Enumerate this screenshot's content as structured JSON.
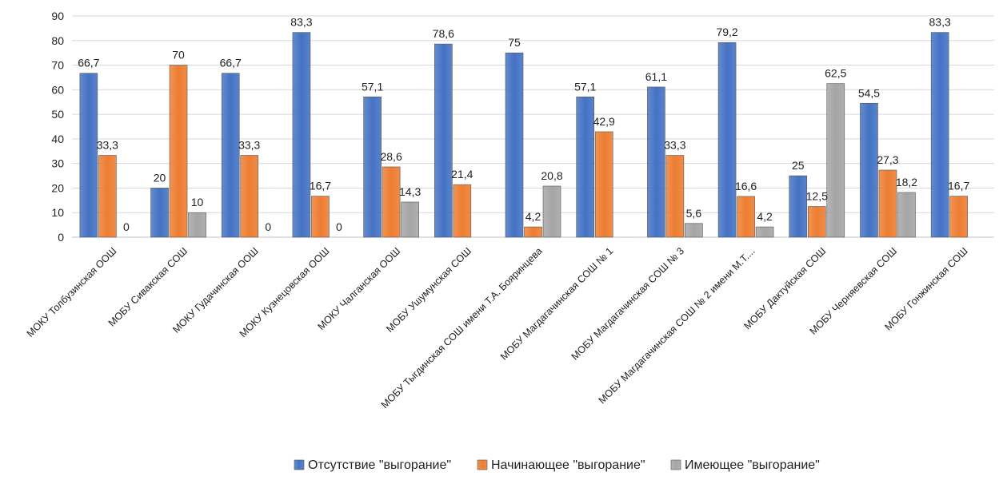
{
  "chart_data": {
    "type": "bar",
    "title": "",
    "xlabel": "",
    "ylabel": "",
    "ylim": [
      0,
      90
    ],
    "yticks": [
      0,
      10,
      20,
      30,
      40,
      50,
      60,
      70,
      80,
      90
    ],
    "grid": true,
    "legend_position": "bottom",
    "categories": [
      "МОКУ Толбузинская ООШ",
      "МОБУ Сивакская СОШ",
      "МОКУ Гудачинская ООШ",
      "МОКУ Кузнецовская ООШ",
      "МОКУ Чалганская ООШ",
      "МОБУ Ушумунская СОШ",
      "МОБУ Тыгдинская СОШ имени Т.А. Бояринцева",
      "МОБУ Магдагачинская СОШ № 1",
      "МОБУ Магдагачинская СОШ № 3",
      "МОБУ Магдагачинская СОШ № 2 имени М.Т....",
      "МОБУ Дактуйская СОШ",
      "МОБУ Черняевская СОШ",
      "МОБУ Гонжинская СОШ"
    ],
    "series": [
      {
        "name": "Отсутствие \"выгорание\"",
        "color": "#4472C4",
        "values": [
          66.7,
          20,
          66.7,
          83.3,
          57.1,
          78.6,
          75,
          57.1,
          61.1,
          79.2,
          25,
          54.5,
          83.3
        ],
        "labels": [
          "66,7",
          "20",
          "66,7",
          "83,3",
          "57,1",
          "78,6",
          "75",
          "57,1",
          "61,1",
          "79,2",
          "25",
          "54,5",
          "83,3"
        ]
      },
      {
        "name": "Начинающее \"выгорание\"",
        "color": "#ED7D31",
        "values": [
          33.3,
          70,
          33.3,
          16.7,
          28.6,
          21.4,
          4.2,
          42.9,
          33.3,
          16.6,
          12.5,
          27.3,
          16.7
        ],
        "labels": [
          "33,3",
          "70",
          "33,3",
          "16,7",
          "28,6",
          "21,4",
          "4,2",
          "42,9",
          "33,3",
          "16,6",
          "12,5",
          "27,3",
          "16,7"
        ]
      },
      {
        "name": "Имеющее \"выгорание\"",
        "color": "#A5A5A5",
        "values": [
          0,
          10,
          0,
          0,
          14.3,
          null,
          20.8,
          null,
          5.6,
          4.2,
          62.5,
          18.2,
          null
        ],
        "labels": [
          "0",
          "10",
          "0",
          "0",
          "14,3",
          null,
          "20,8",
          null,
          "5,6",
          "4,2",
          "62,5",
          "18,2",
          null
        ]
      }
    ]
  }
}
